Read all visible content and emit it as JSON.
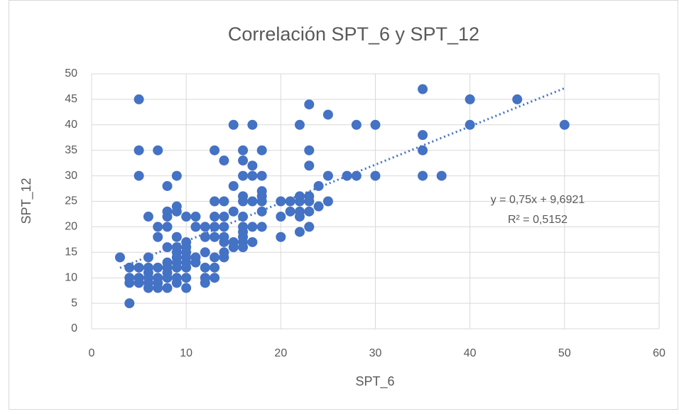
{
  "chart_data": {
    "type": "scatter",
    "title": "Correlación SPT_6 y SPT_12",
    "xlabel": "SPT_6",
    "ylabel": "SPT_12",
    "color": "#4472c4",
    "x": [
      3,
      4,
      4,
      4,
      4,
      5,
      5,
      5,
      5,
      5,
      5,
      6,
      6,
      6,
      6,
      6,
      6,
      6,
      7,
      7,
      7,
      7,
      7,
      7,
      7,
      8,
      8,
      8,
      8,
      8,
      8,
      8,
      8,
      8,
      8,
      9,
      9,
      9,
      9,
      9,
      9,
      9,
      9,
      9,
      9,
      9,
      10,
      10,
      10,
      10,
      10,
      10,
      10,
      10,
      10,
      11,
      11,
      11,
      11,
      12,
      12,
      12,
      12,
      12,
      12,
      13,
      13,
      13,
      13,
      13,
      13,
      13,
      13,
      14,
      14,
      14,
      14,
      14,
      14,
      14,
      14,
      15,
      15,
      15,
      15,
      15,
      16,
      16,
      16,
      16,
      16,
      16,
      16,
      16,
      16,
      16,
      16,
      17,
      17,
      17,
      17,
      17,
      17,
      18,
      18,
      18,
      18,
      18,
      18,
      18,
      20,
      20,
      20,
      21,
      21,
      22,
      22,
      22,
      22,
      22,
      22,
      23,
      23,
      23,
      23,
      23,
      23,
      23,
      24,
      24,
      25,
      25,
      25,
      27,
      28,
      28,
      30,
      30,
      35,
      35,
      35,
      35,
      37,
      40,
      40,
      45,
      50
    ],
    "values": [
      14,
      12,
      10,
      9,
      5,
      45,
      35,
      30,
      12,
      10,
      9,
      22,
      14,
      12,
      11,
      10,
      9,
      8,
      35,
      20,
      18,
      12,
      10,
      9,
      8,
      28,
      23,
      22,
      20,
      16,
      13,
      12,
      11,
      10,
      8,
      30,
      24,
      23,
      18,
      16,
      15,
      14,
      13,
      12,
      10,
      9,
      22,
      17,
      16,
      15,
      14,
      13,
      12,
      10,
      8,
      22,
      20,
      14,
      13,
      20,
      18,
      15,
      12,
      10,
      9,
      35,
      25,
      22,
      20,
      18,
      14,
      12,
      10,
      33,
      25,
      22,
      20,
      18,
      17,
      15,
      14,
      40,
      28,
      23,
      17,
      16,
      35,
      33,
      30,
      26,
      25,
      22,
      20,
      19,
      18,
      17,
      16,
      40,
      32,
      30,
      25,
      20,
      17,
      35,
      30,
      27,
      26,
      25,
      23,
      20,
      25,
      22,
      18,
      25,
      23,
      40,
      26,
      25,
      23,
      22,
      19,
      44,
      35,
      32,
      26,
      25,
      23,
      20,
      28,
      24,
      42,
      30,
      25,
      30,
      40,
      30,
      40,
      30,
      47,
      38,
      35,
      30,
      30,
      45,
      40,
      45,
      40
    ],
    "xlim": [
      0,
      60
    ],
    "ylim": [
      0,
      50
    ],
    "xticks": [
      0,
      10,
      20,
      30,
      40,
      50,
      60
    ],
    "yticks": [
      0,
      5,
      10,
      15,
      20,
      25,
      30,
      35,
      40,
      45,
      50
    ],
    "grid": true,
    "trendline": {
      "label": "y = 0,75x + 9,6921",
      "r2_label": "R² = 0,5152",
      "slope": 0.75,
      "intercept": 9.6921
    }
  }
}
